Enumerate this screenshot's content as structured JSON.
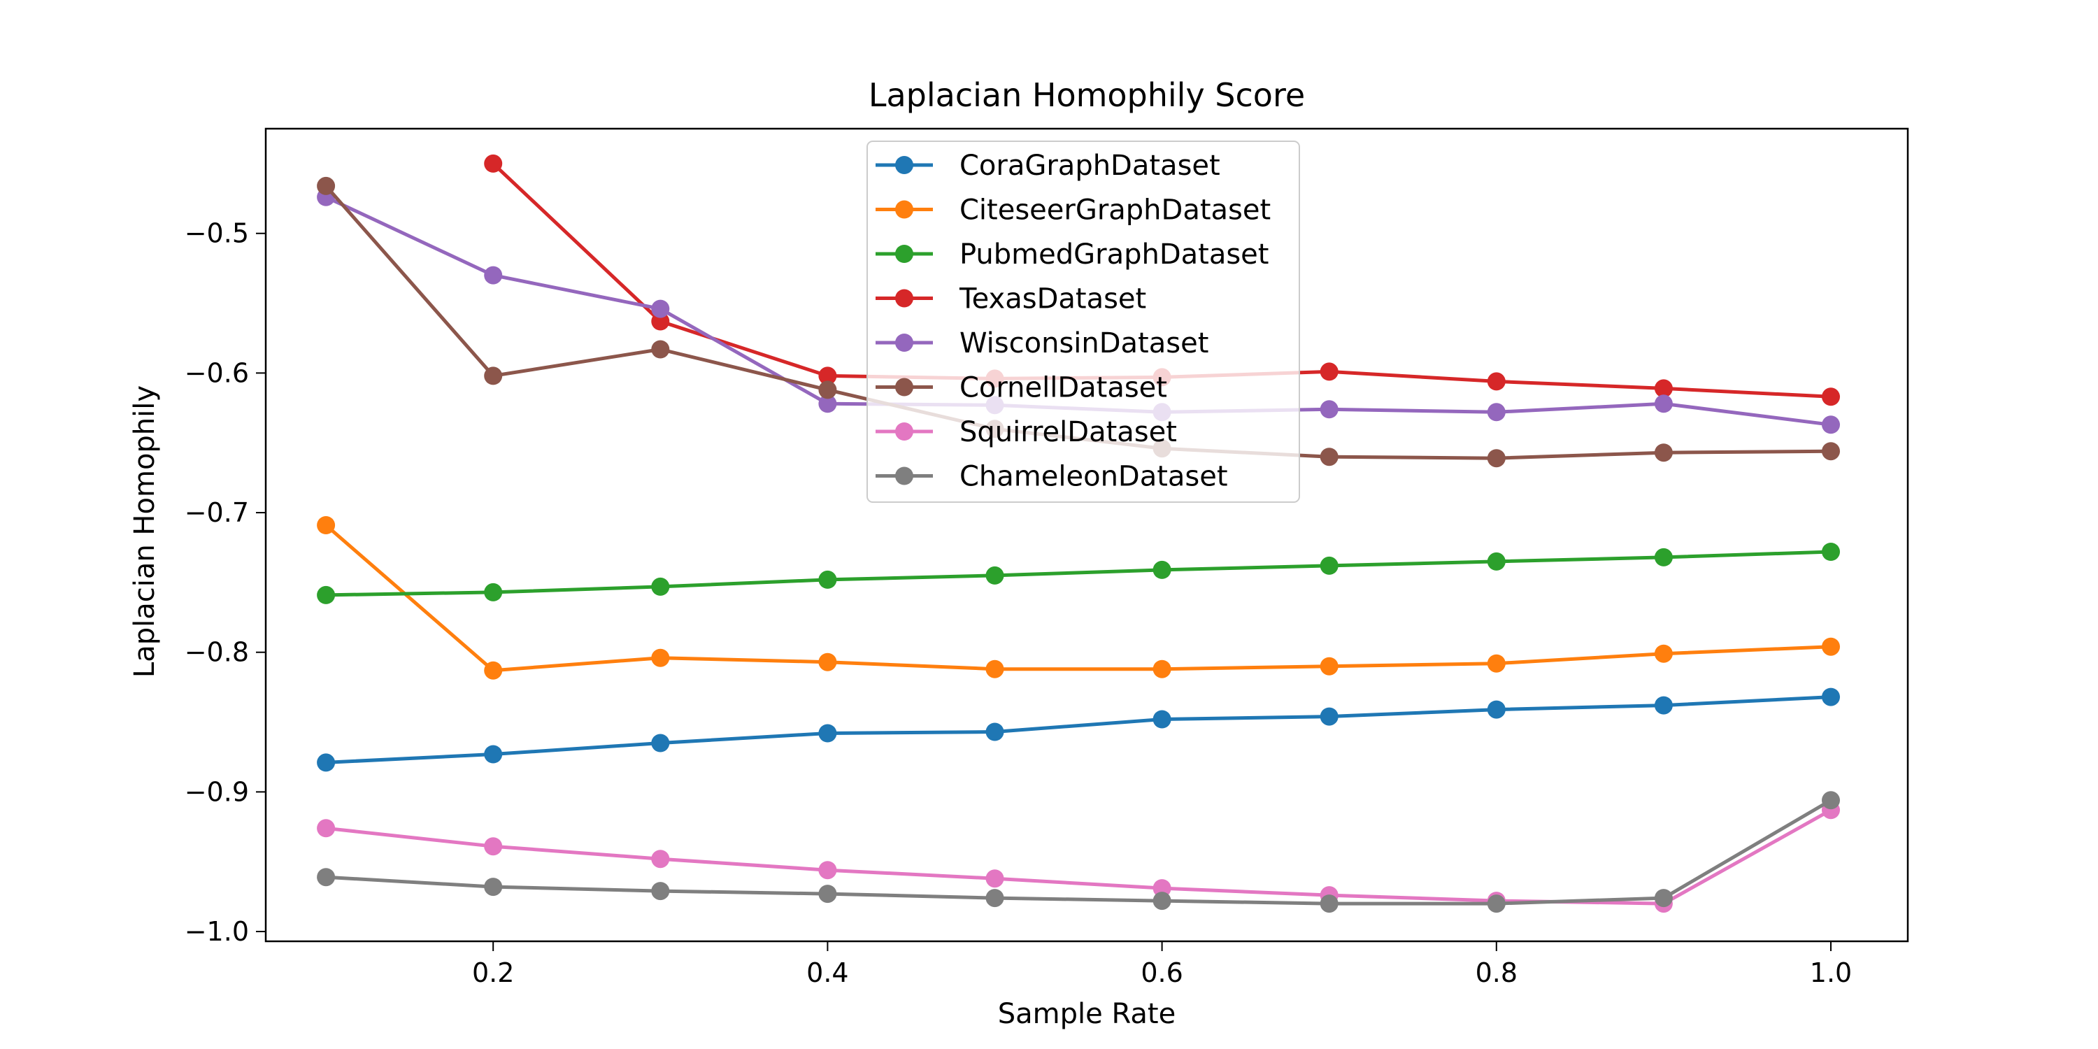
{
  "chart_data": {
    "type": "line",
    "title": "Laplacian Homophily Score",
    "xlabel": "Sample Rate",
    "ylabel": "Laplacian Homophily",
    "xlim": [
      0.064,
      1.046
    ],
    "ylim": [
      -1.007,
      -0.425
    ],
    "xticks": [
      0.2,
      0.4,
      0.6,
      0.8,
      1.0
    ],
    "xtick_labels": [
      "0.2",
      "0.4",
      "0.6",
      "0.8",
      "1.0"
    ],
    "yticks": [
      -0.5,
      -0.6,
      -0.7,
      -0.8,
      -0.9,
      -1.0
    ],
    "ytick_labels": [
      "−0.5",
      "−0.6",
      "−0.7",
      "−0.8",
      "−0.9",
      "−1.0"
    ],
    "grid": false,
    "legend_position": "top-center",
    "x": [
      0.1,
      0.2,
      0.3,
      0.4,
      0.5,
      0.6,
      0.7,
      0.8,
      0.9,
      1.0
    ],
    "series": [
      {
        "name": "CoraGraphDataset",
        "color": "#1f77b4",
        "values": [
          -0.879,
          -0.873,
          -0.865,
          -0.858,
          -0.857,
          -0.848,
          -0.846,
          -0.841,
          -0.838,
          -0.832
        ]
      },
      {
        "name": "CiteseerGraphDataset",
        "color": "#ff7f0e",
        "values": [
          -0.709,
          -0.813,
          -0.804,
          -0.807,
          -0.812,
          -0.812,
          -0.81,
          -0.808,
          -0.801,
          -0.796
        ]
      },
      {
        "name": "PubmedGraphDataset",
        "color": "#2ca02c",
        "values": [
          -0.759,
          -0.757,
          -0.753,
          -0.748,
          -0.745,
          -0.741,
          -0.738,
          -0.735,
          -0.732,
          -0.728
        ]
      },
      {
        "name": "TexasDataset",
        "color": "#d62728",
        "values": [
          null,
          -0.45,
          -0.563,
          -0.602,
          -0.604,
          -0.603,
          -0.599,
          -0.606,
          -0.611,
          -0.617
        ]
      },
      {
        "name": "WisconsinDataset",
        "color": "#9467bd",
        "values": [
          -0.474,
          -0.53,
          -0.554,
          -0.622,
          -0.623,
          -0.628,
          -0.626,
          -0.628,
          -0.622,
          -0.637
        ]
      },
      {
        "name": "CornellDataset",
        "color": "#8c564b",
        "values": [
          -0.466,
          -0.602,
          -0.583,
          -0.612,
          -0.64,
          -0.654,
          -0.66,
          -0.661,
          -0.657,
          -0.656
        ]
      },
      {
        "name": "SquirrelDataset",
        "color": "#e377c2",
        "values": [
          -0.926,
          -0.939,
          -0.948,
          -0.956,
          -0.962,
          -0.969,
          -0.974,
          -0.978,
          -0.98,
          -0.913
        ]
      },
      {
        "name": "ChameleonDataset",
        "color": "#7f7f7f",
        "values": [
          -0.961,
          -0.968,
          -0.971,
          -0.973,
          -0.976,
          -0.978,
          -0.98,
          -0.98,
          -0.976,
          -0.906
        ]
      }
    ]
  }
}
